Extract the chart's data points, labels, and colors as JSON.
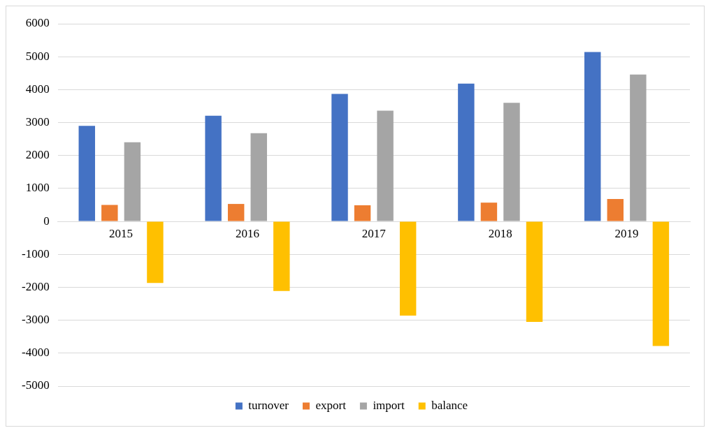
{
  "chart_data": {
    "type": "bar",
    "categories": [
      "2015",
      "2016",
      "2017",
      "2018",
      "2019"
    ],
    "series": [
      {
        "name": "turnover",
        "color": "#4472c4",
        "values": [
          2900,
          3210,
          3870,
          4180,
          5140
        ]
      },
      {
        "name": "export",
        "color": "#ed7d31",
        "values": [
          500,
          530,
          490,
          570,
          680
        ]
      },
      {
        "name": "import",
        "color": "#a5a5a5",
        "values": [
          2400,
          2680,
          3360,
          3600,
          4460
        ]
      },
      {
        "name": "balance",
        "color": "#ffc000",
        "values": [
          -1870,
          -2110,
          -2860,
          -3050,
          -3780
        ]
      }
    ],
    "ylim": [
      -5000,
      6000
    ],
    "yticks": [
      -5000,
      -4000,
      -3000,
      -2000,
      -1000,
      0,
      1000,
      2000,
      3000,
      4000,
      5000,
      6000
    ],
    "grid": "y",
    "legend": "bottom"
  }
}
